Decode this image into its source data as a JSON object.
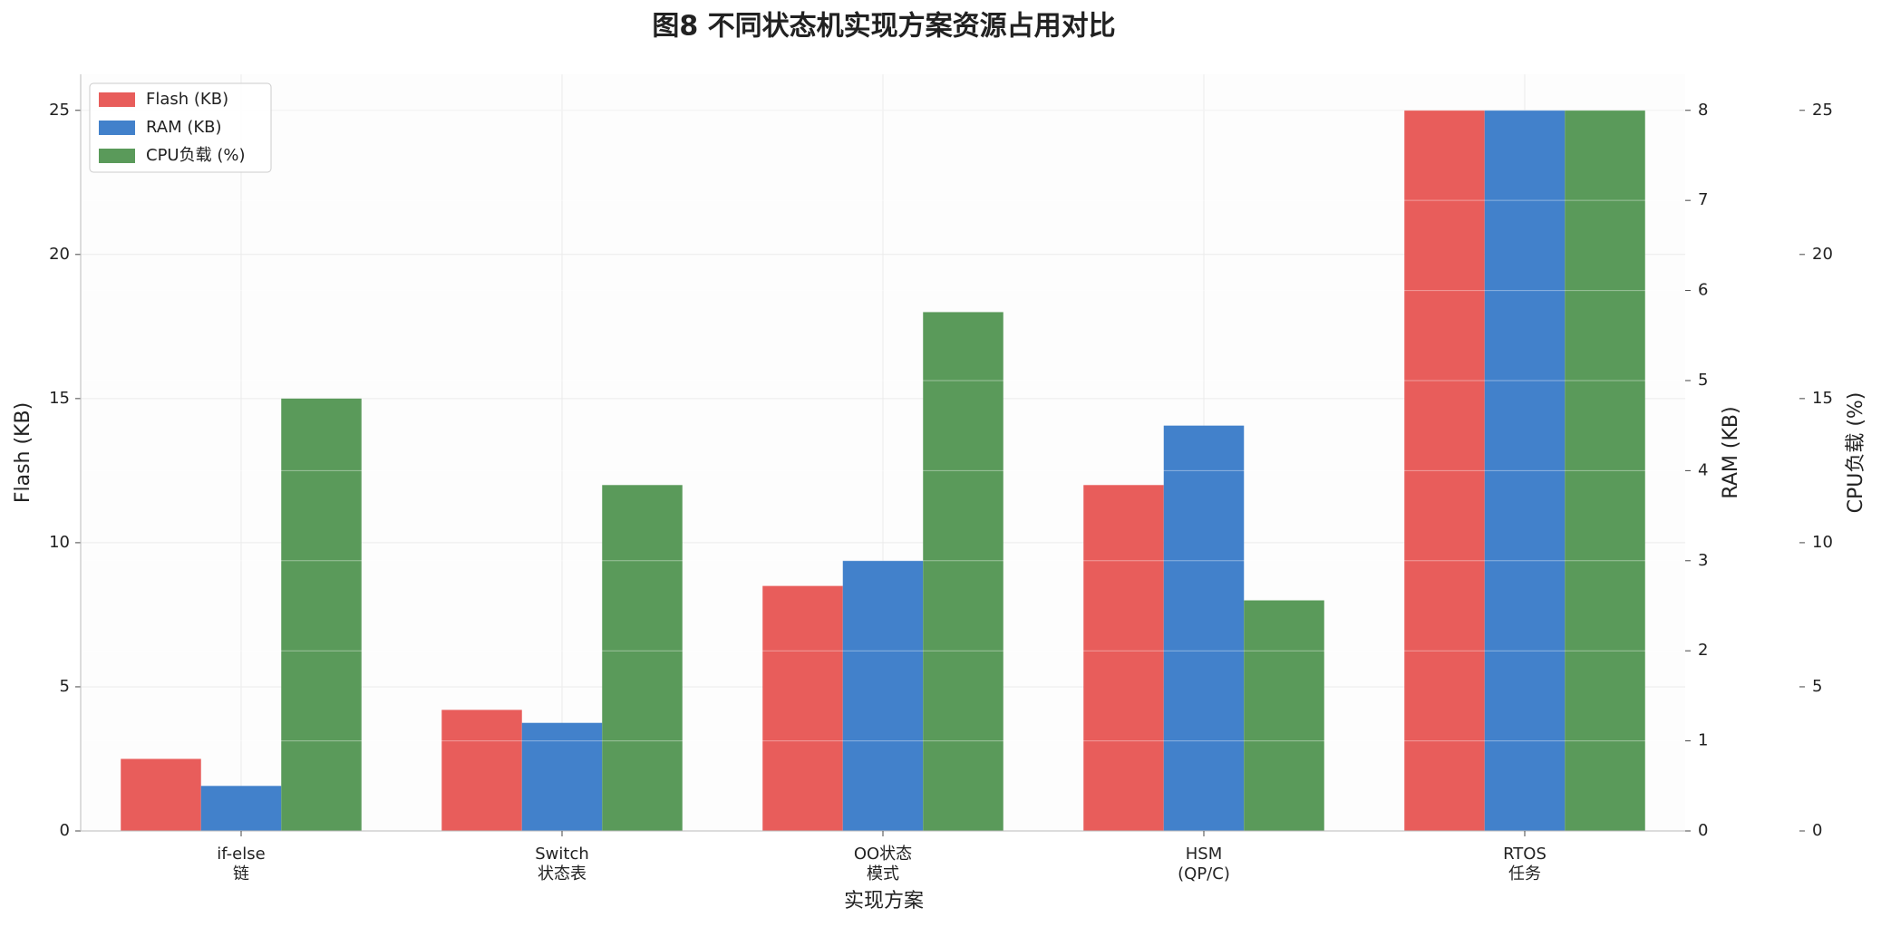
{
  "chart_data": {
    "type": "bar",
    "title": "图8  不同状态机实现方案资源占用对比",
    "xlabel": "实现方案",
    "ylabel": "Flash (KB)",
    "y2label": "RAM (KB)",
    "y3label": "CPU负载 (%)",
    "categories": [
      [
        "if-else",
        "链"
      ],
      [
        "Switch",
        "状态表"
      ],
      [
        "OO状态",
        "模式"
      ],
      [
        "HSM",
        "(QP/C)"
      ],
      [
        "RTOS",
        "任务"
      ]
    ],
    "series": [
      {
        "name": "Flash (KB)",
        "color": "#e85d5b",
        "axis": "y",
        "values": [
          2.5,
          4.2,
          8.5,
          12,
          25
        ]
      },
      {
        "name": "RAM (KB)",
        "color": "#4281cb",
        "axis": "y2",
        "values": [
          0.5,
          1.2,
          3.0,
          4.5,
          8
        ]
      },
      {
        "name": "CPU负载 (%)",
        "color": "#5a9a5a",
        "axis": "y3",
        "values": [
          15,
          12,
          18,
          8,
          25
        ]
      }
    ],
    "ylim": [
      0,
      26.25
    ],
    "yticks": [
      0,
      5,
      10,
      15,
      20,
      25
    ],
    "y2lim": [
      0,
      8.4
    ],
    "y2ticks": [
      0,
      1,
      2,
      3,
      4,
      5,
      6,
      7,
      8
    ],
    "y3lim": [
      0,
      26.25
    ],
    "y3ticks": [
      0,
      5,
      10,
      15,
      20,
      25
    ],
    "axis_colors": {
      "y": "#e53935",
      "y2": "#1565c0",
      "y3": "#2e7d32"
    },
    "grid": true,
    "legend": "upper left"
  }
}
